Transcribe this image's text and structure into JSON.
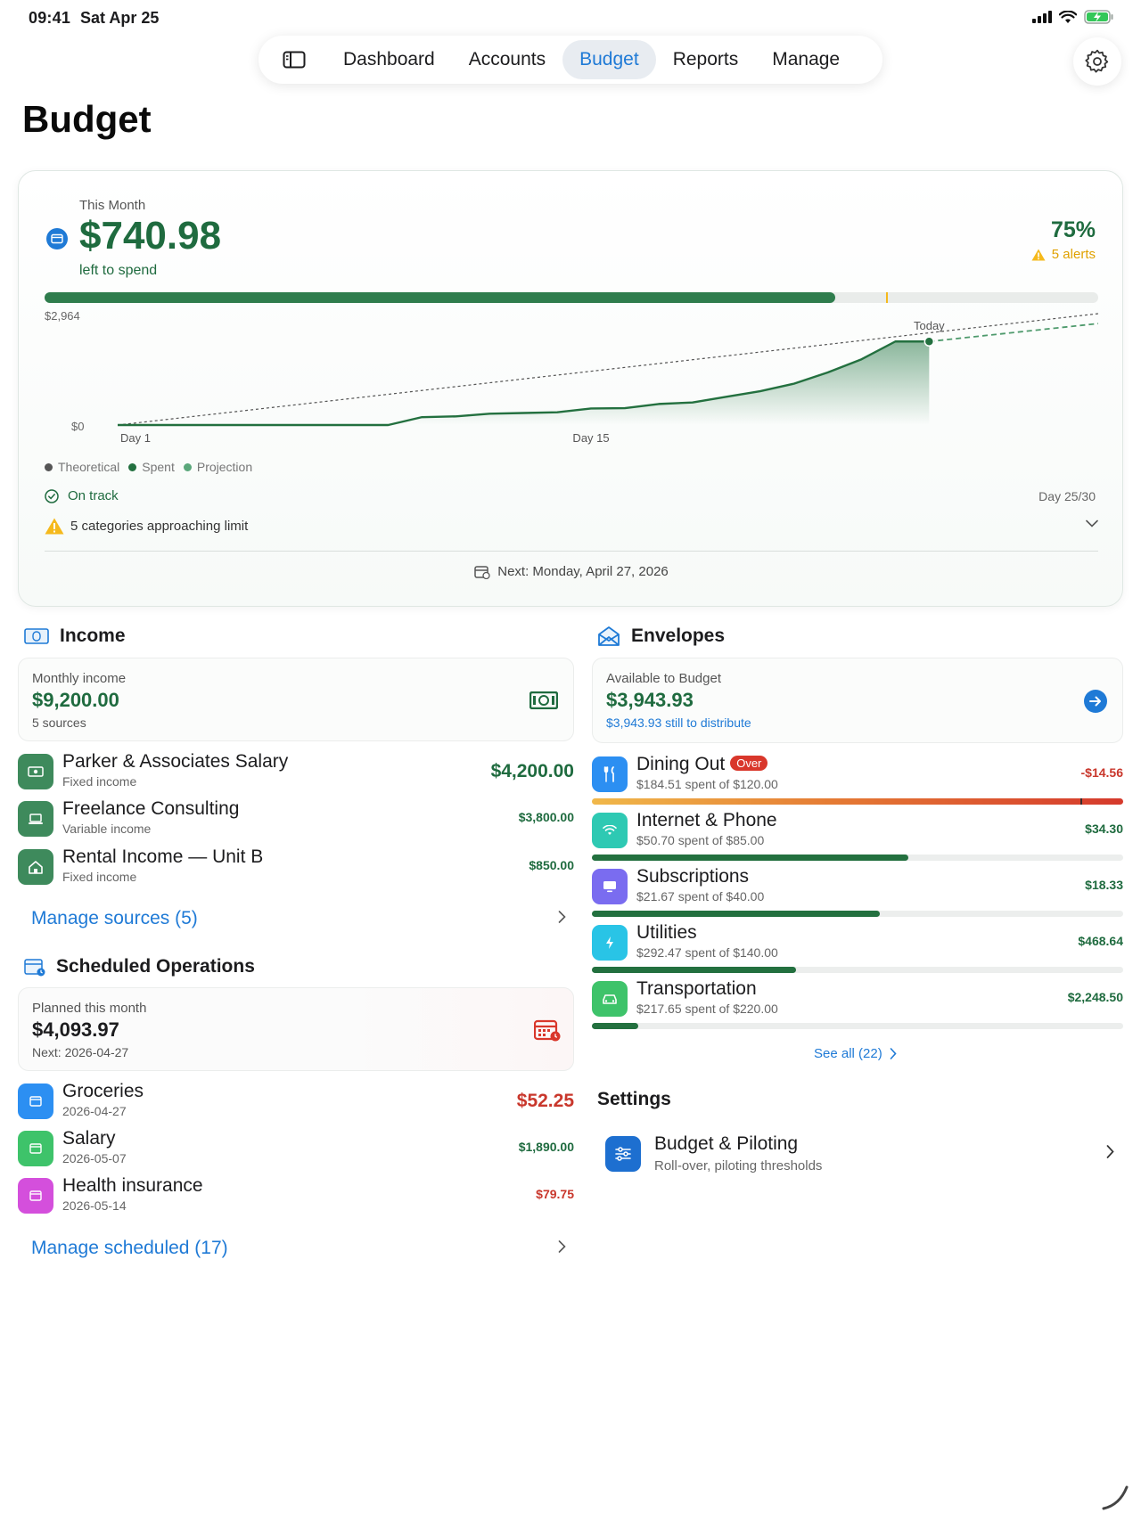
{
  "status_bar": {
    "time": "09:41",
    "date": "Sat Apr 25"
  },
  "nav": {
    "tabs": [
      {
        "label": "Dashboard",
        "active": false
      },
      {
        "label": "Accounts",
        "active": false
      },
      {
        "label": "Budget",
        "active": true
      },
      {
        "label": "Reports",
        "active": false
      },
      {
        "label": "Manage",
        "active": false
      }
    ]
  },
  "page_title": "Budget",
  "summary": {
    "period_label": "This Month",
    "left_amount": "$740.98",
    "left_caption": "left to spend",
    "percent": "75%",
    "alerts": "5 alerts",
    "progress_fraction": 0.75,
    "progress_marker_fraction": 0.799,
    "on_track": "On track",
    "day_count": "Day 25/30",
    "approaching": "5 categories approaching limit",
    "next": "Next: Monday, April 27, 2026"
  },
  "chart_data": {
    "type": "line",
    "y_max_label": "$2,964",
    "y_min_label": "$0",
    "x_ticks": [
      "Day 1",
      "Day 15"
    ],
    "today_label": "Today",
    "legend": [
      "Theoretical",
      "Spent",
      "Projection"
    ],
    "days_total": 30,
    "today_day": 25,
    "y_range": [
      0,
      2964
    ],
    "colors": {
      "theoretical": "#555555",
      "spent": "#23703f",
      "projection": "#4e9a6c"
    },
    "series": [
      {
        "name": "Theoretical",
        "x": [
          1,
          30
        ],
        "y": [
          0,
          2964
        ]
      },
      {
        "name": "Spent",
        "x": [
          1,
          2,
          3,
          4,
          5,
          6,
          7,
          8,
          9,
          10,
          11,
          12,
          13,
          14,
          15,
          16,
          17,
          18,
          19,
          20,
          21,
          22,
          23,
          24,
          25
        ],
        "y": [
          0,
          0,
          0,
          0,
          0,
          0,
          0,
          0,
          0,
          210,
          230,
          300,
          320,
          340,
          440,
          450,
          560,
          600,
          750,
          900,
          1100,
          1400,
          1750,
          2223,
          2223
        ]
      },
      {
        "name": "Projection",
        "x": [
          25,
          30
        ],
        "y": [
          2223,
          2700
        ]
      }
    ]
  },
  "income": {
    "title": "Income",
    "card_label": "Monthly income",
    "card_amount": "$9,200.00",
    "card_sub": "5 sources",
    "items": [
      {
        "title": "Parker & Associates Salary",
        "sub": "Fixed income",
        "amount": "$4,200.00"
      },
      {
        "title": "Freelance Consulting",
        "sub": "Variable income",
        "amount": "$3,800.00"
      },
      {
        "title": "Rental Income — Unit B",
        "sub": "Fixed income",
        "amount": "$850.00"
      }
    ],
    "manage_link": "Manage sources (5)"
  },
  "scheduled": {
    "title": "Scheduled Operations",
    "card_label": "Planned this month",
    "card_amount": "$4,093.97",
    "card_sub": "Next: 2026-04-27",
    "items": [
      {
        "title": "Groceries",
        "sub": "2026-04-27",
        "amount": "$52.25",
        "color": "#2c8ff2"
      },
      {
        "title": "Salary",
        "sub": "2026-05-07",
        "amount": "$1,890.00",
        "color": "#3ec36a"
      },
      {
        "title": "Health insurance",
        "sub": "2026-05-14",
        "amount": "$79.75",
        "color": "#d44fdc"
      }
    ],
    "manage_link": "Manage scheduled (17)"
  },
  "envelopes": {
    "title": "Envelopes",
    "card_label": "Available to Budget",
    "card_amount": "$3,943.93",
    "card_sub": "$3,943.93 still to distribute",
    "items": [
      {
        "title": "Dining Out",
        "badge": "Over",
        "sub": "$184.51 spent of $120.00",
        "amount": "-$14.56",
        "fraction": 1.0,
        "color": "#2c8ff2",
        "icon": "fork-knife-icon"
      },
      {
        "title": "Internet & Phone",
        "sub": "$50.70 spent of $85.00",
        "amount": "$34.30",
        "fraction": 0.596,
        "color": "#2ec9b3",
        "icon": "wifi-icon"
      },
      {
        "title": "Subscriptions",
        "sub": "$21.67 spent of $40.00",
        "amount": "$18.33",
        "fraction": 0.542,
        "color": "#7a6cf0",
        "icon": "tv-icon"
      },
      {
        "title": "Utilities",
        "sub": "$292.47 spent of $140.00",
        "amount": "$468.64",
        "fraction": 0.384,
        "color": "#29c4e6",
        "icon": "bolt-icon"
      },
      {
        "title": "Transportation",
        "sub": "$217.65 spent of $220.00",
        "amount": "$2,248.50",
        "fraction": 0.088,
        "color": "#3ec36a",
        "icon": "car-icon"
      }
    ],
    "see_all": "See all (22)"
  },
  "settings": {
    "title": "Settings",
    "row_title": "Budget & Piloting",
    "row_sub": "Roll-over, piloting thresholds"
  },
  "colors": {
    "accent": "#1f7ad6",
    "positive": "#1f6b3f",
    "negative": "#c9372c",
    "warning": "#e0a100"
  }
}
